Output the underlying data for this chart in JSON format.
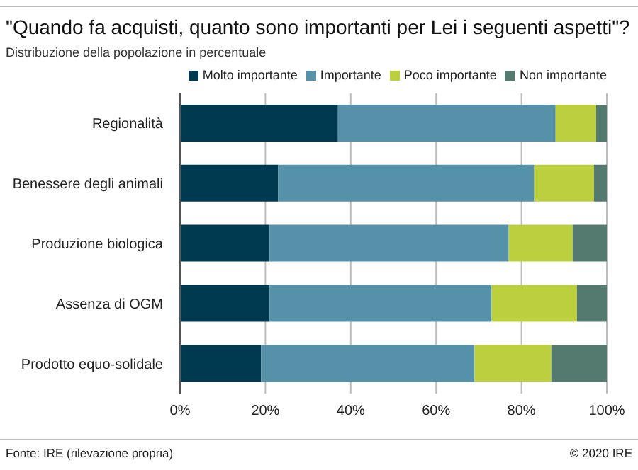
{
  "chart_data": {
    "type": "bar",
    "orientation": "horizontal",
    "stacked": true,
    "title": "\"Quando fa acquisti, quanto sono importanti per Lei i seguenti aspetti\"?",
    "subtitle": "Distribuzione della popolazione in percentuale",
    "categories": [
      "Regionalità",
      "Benessere degli animali",
      "Produzione biologica",
      "Assenza di OGM",
      "Prodotto equo-solidale"
    ],
    "series": [
      {
        "name": "Molto importante",
        "color": "#003a50",
        "values": [
          37,
          23,
          21,
          21,
          19
        ]
      },
      {
        "name": "Importante",
        "color": "#5592aa",
        "values": [
          51,
          60,
          56,
          52,
          50
        ]
      },
      {
        "name": "Poco importante",
        "color": "#bccf3f",
        "values": [
          9.5,
          14,
          15,
          20,
          18
        ]
      },
      {
        "name": "Non importante",
        "color": "#547a70",
        "values": [
          2.5,
          3,
          8,
          7,
          13
        ]
      }
    ],
    "xlim": [
      0,
      100
    ],
    "xticks": [
      {
        "value": 0,
        "label": "0%"
      },
      {
        "value": 20,
        "label": "20%"
      },
      {
        "value": 40,
        "label": "40%"
      },
      {
        "value": 60,
        "label": "60%"
      },
      {
        "value": 80,
        "label": "80%"
      },
      {
        "value": 100,
        "label": "100%"
      }
    ],
    "grid": "x",
    "legend": "top right",
    "annotations": [
      "Fonte: IRE (rilevazione propria)",
      "© 2020 IRE"
    ]
  }
}
